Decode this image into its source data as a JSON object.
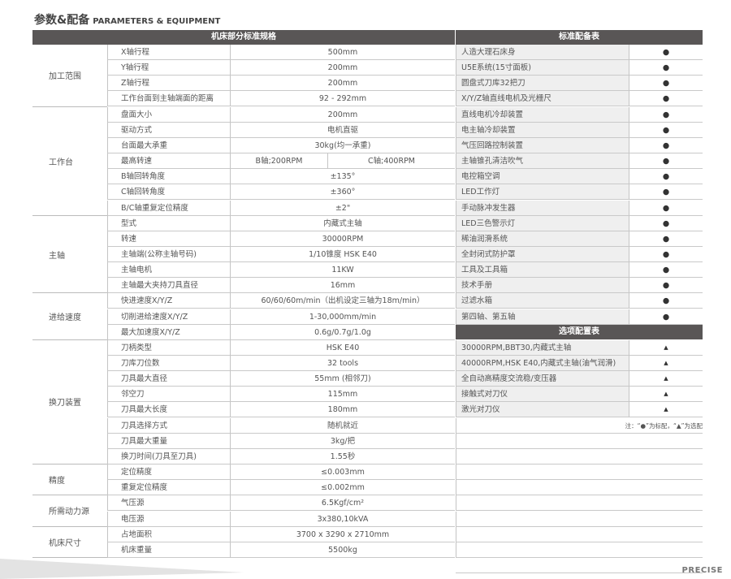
{
  "header": {
    "title_cn": "参数&配备",
    "title_en": "PARAMETERS & EQUIPMENT"
  },
  "spec": {
    "title": "机床部分标准规格",
    "groups": [
      {
        "name": "加工范围",
        "rows": [
          [
            "X轴行程",
            "500mm"
          ],
          [
            "Y轴行程",
            "200mm"
          ],
          [
            "Z轴行程",
            "200mm"
          ],
          [
            "工作台面到主轴端面的距离",
            "92 - 292mm"
          ]
        ]
      },
      {
        "name": "工作台",
        "rows": [
          [
            "盘面大小",
            "200mm"
          ],
          [
            "驱动方式",
            "电机直驱"
          ],
          [
            "台面最大承重",
            "30kg(均一承重)"
          ],
          [
            "最高转速",
            "B轴;200RPM",
            "C轴;400RPM"
          ],
          [
            "B轴回转角度",
            "±135°"
          ],
          [
            "C轴回转角度",
            "±360°"
          ],
          [
            "B/C轴重复定位精度",
            "±2\""
          ]
        ]
      },
      {
        "name": "主轴",
        "rows": [
          [
            "型式",
            "内藏式主轴"
          ],
          [
            "转速",
            "30000RPM"
          ],
          [
            "主轴端(公称主轴号码)",
            "1/10锥度 HSK E40"
          ],
          [
            "主轴电机",
            "11KW"
          ],
          [
            "主轴最大夹持刀具直径",
            "16mm"
          ]
        ]
      },
      {
        "name": "进给速度",
        "rows": [
          [
            "快进速度X/Y/Z",
            "60/60/60m/min（出机设定三轴为18m/min）"
          ],
          [
            "切削进给速度X/Y/Z",
            "1-30,000mm/min"
          ],
          [
            "最大加速度X/Y/Z",
            "0.6g/0.7g/1.0g"
          ]
        ]
      },
      {
        "name": "换刀装置",
        "rows": [
          [
            "刀柄类型",
            "HSK E40"
          ],
          [
            "刀库刀位数",
            "32 tools"
          ],
          [
            "刀具最大直径",
            "55mm (相邻刀)"
          ],
          [
            "邻空刀",
            "115mm"
          ],
          [
            "刀具最大长度",
            "180mm"
          ],
          [
            "刀具选择方式",
            "随机就近"
          ],
          [
            "刀具最大重量",
            "3kg/把"
          ],
          [
            "换刀时间(刀具至刀具)",
            "1.55秒"
          ]
        ]
      },
      {
        "name": "精度",
        "rows": [
          [
            "定位精度",
            "≤0.003mm"
          ],
          [
            "重复定位精度",
            "≤0.002mm"
          ]
        ]
      },
      {
        "name": "所需动力源",
        "rows": [
          [
            "气压源",
            "6.5Kgf/cm²"
          ],
          [
            "电压源",
            "3x380,10kVA"
          ]
        ]
      },
      {
        "name": "机床尺寸",
        "rows": [
          [
            "占地面积",
            "3700 x 3290 x 2710mm"
          ],
          [
            "机床重量",
            "5500kg"
          ]
        ]
      }
    ]
  },
  "standard": {
    "title": "标准配备表",
    "mark": "●",
    "items": [
      "人造大理石床身",
      "U5E系统(15寸面板)",
      "圆盘式刀库32把刀",
      "X/Y/Z轴直线电机及光栅尺",
      "直线电机冷却装置",
      "电主轴冷却装置",
      "气压回路控制装置",
      "主轴锥孔清洁吹气",
      "电控箱空调",
      "LED工作灯",
      "手动脉冲发生器",
      "LED三色警示灯",
      "稀油润滑系统",
      "全封闭式防护罩",
      "工具及工具箱",
      "技术手册",
      "过滤水箱",
      "第四轴、第五轴"
    ]
  },
  "optional": {
    "title": "选项配置表",
    "mark": "▲",
    "items": [
      "30000RPM,BBT30,内藏式主轴",
      "40000RPM,HSK E40,内藏式主轴(油气润滑)",
      "全自动高精度交流稳/变压器",
      "接触式对刀仪",
      "激光对刀仪"
    ]
  },
  "note": "注：“●”为标配，“▲”为选配",
  "footer": {
    "brand": "PRECISE"
  },
  "colors": {
    "header_bg": "#595656",
    "item_bg": "#efefef"
  }
}
